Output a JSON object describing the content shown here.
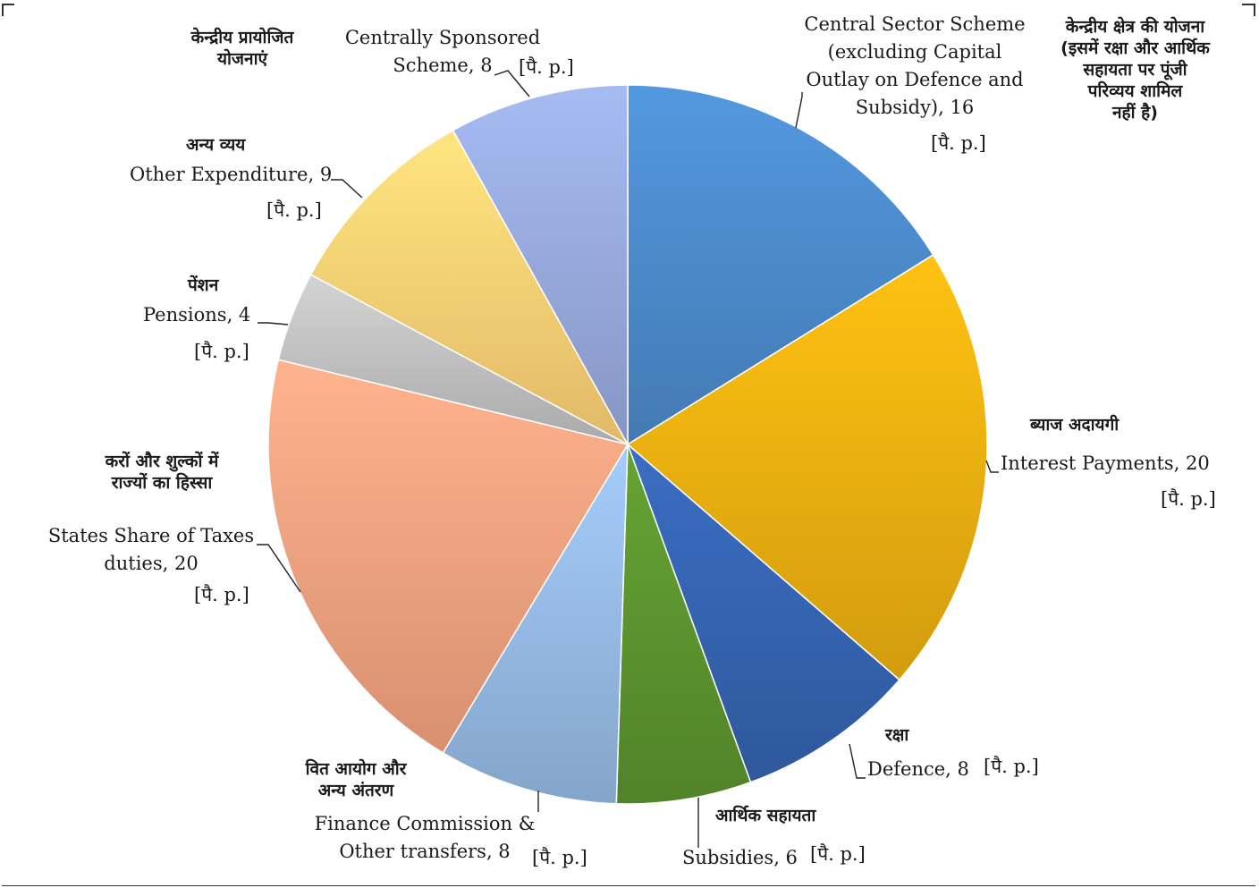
{
  "chart_data": {
    "type": "pie",
    "unit_label": "[पै. p.]",
    "slices": [
      {
        "key": "central",
        "label": "Central Sector Scheme (excluding Capital Outlay on Defence and Subsidy)",
        "value": 16,
        "hindi": "केन्द्रीय क्षेत्र की योजना (इसमें रक्षा और आर्थिक सहायता पर पूंजी परिव्यय शामिल नहीं है)",
        "color": "#4a88c7"
      },
      {
        "key": "interest",
        "label": "Interest Payments",
        "value": 20,
        "hindi": "ब्याज अदायगी",
        "color": "#e9ad10"
      },
      {
        "key": "defence",
        "label": "Defence",
        "value": 8,
        "hindi": "रक्षा",
        "color": "#3462ad"
      },
      {
        "key": "subsidies",
        "label": "Subsidies",
        "value": 6,
        "hindi": "आर्थिक सहायता",
        "color": "#5a922e"
      },
      {
        "key": "finance",
        "label": "Finance Commission & Other transfers",
        "value": 8,
        "hindi": "वित आयोग और अन्य अंतरण",
        "color": "#93b7e0"
      },
      {
        "key": "states",
        "label": "States Share of Taxes duties",
        "value": 20,
        "hindi": "करों और शुल्कों में राज्यों का हिस्सा",
        "color": "#f0a07e"
      },
      {
        "key": "pensions",
        "label": "Pensions",
        "value": 4,
        "hindi": "पेंशन",
        "color": "#bdbdbd"
      },
      {
        "key": "other",
        "label": "Other Expenditure",
        "value": 9,
        "hindi": "अन्य व्यय",
        "color": "#fbcd72"
      },
      {
        "key": "css",
        "label": "Centrally Sponsored Scheme",
        "value": 8,
        "hindi": "केन्द्रीय प्रायोजित योजनाएं",
        "color": "#95a7d9"
      }
    ]
  },
  "labels": {
    "central_l1": "Central Sector Scheme",
    "central_l2": "(excluding Capital",
    "central_l3": "Outlay on Defence and",
    "central_l4": "Subsidy), 16",
    "central_h1": "केन्द्रीय क्षेत्र की योजना",
    "central_h2": "(इसमें रक्षा और आर्थिक",
    "central_h3": "सहायता पर पूंजी",
    "central_h4": "परिव्यय शामिल",
    "central_h5": "नहीं है)",
    "interest_en": "Interest Payments, 20",
    "interest_hi": "ब्याज अदायगी",
    "defence_en": "Defence, 8",
    "defence_hi": "रक्षा",
    "subsidies_en": "Subsidies, 6",
    "subsidies_hi": "आर्थिक सहायता",
    "finance_l1": "Finance Commission &",
    "finance_l2": "Other transfers, 8",
    "finance_h1": "वित आयोग और",
    "finance_h2": "अन्य अंतरण",
    "states_l1": "States Share of Taxes",
    "states_l2": "duties, 20",
    "states_h1": "करों और शुल्कों में",
    "states_h2": "राज्यों का हिस्सा",
    "pensions_en": "Pensions, 4",
    "pensions_hi": "पेंशन",
    "other_en": "Other Expenditure, 9",
    "other_hi": "अन्य व्यय",
    "css_l1": "Centrally Sponsored",
    "css_l2": "Scheme, 8",
    "css_h1": "केन्द्रीय प्रायोजित",
    "css_h2": "योजनाएं"
  }
}
